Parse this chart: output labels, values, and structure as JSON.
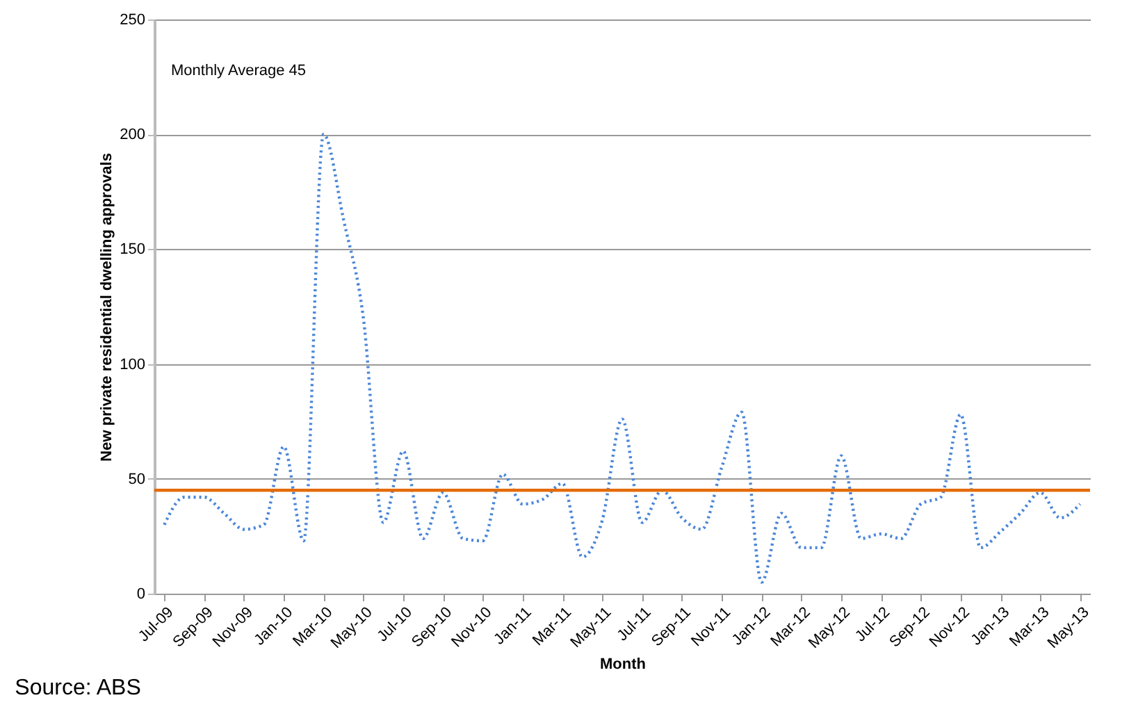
{
  "chart_data": {
    "type": "line",
    "xlabel": "Month",
    "ylabel": "New private residential dwelling approvals",
    "categories": [
      "Jul-09",
      null,
      "Sep-09",
      null,
      "Nov-09",
      null,
      "Jan-10",
      null,
      "Mar-10",
      null,
      "May-10",
      null,
      "Jul-10",
      null,
      "Sep-10",
      null,
      "Nov-10",
      null,
      "Jan-11",
      null,
      "Mar-11",
      null,
      "May-11",
      null,
      "Jul-11",
      null,
      "Sep-11",
      null,
      "Nov-11",
      null,
      "Jan-12",
      null,
      "Mar-12",
      null,
      "May-12",
      null,
      "Jul-12",
      null,
      "Sep-12",
      null,
      "Nov-12",
      null,
      "Jan-13",
      null,
      "Mar-13",
      null,
      "May-13"
    ],
    "series": [
      {
        "color": "#4a86d8",
        "line_style": "dotted",
        "values": [
          30,
          42,
          42,
          35,
          28,
          30,
          64,
          23,
          200,
          163,
          120,
          31,
          62,
          24,
          44,
          24,
          23,
          52,
          39,
          41,
          48,
          16,
          32,
          76,
          31,
          45,
          33,
          28,
          55,
          79,
          5,
          35,
          20,
          20,
          60,
          24,
          26,
          24,
          39,
          42,
          78,
          20,
          27,
          35,
          44,
          33,
          39
        ]
      }
    ],
    "ylim": [
      0,
      250
    ],
    "yticks": [
      0,
      50,
      100,
      150,
      200,
      250
    ],
    "grid": "y",
    "marker": "none",
    "ref_lines": [
      {
        "axis": "y",
        "value": 45,
        "color": "#e46c0a"
      }
    ],
    "annotations": [
      "Monthly Average 45",
      "Source: ABS"
    ]
  }
}
